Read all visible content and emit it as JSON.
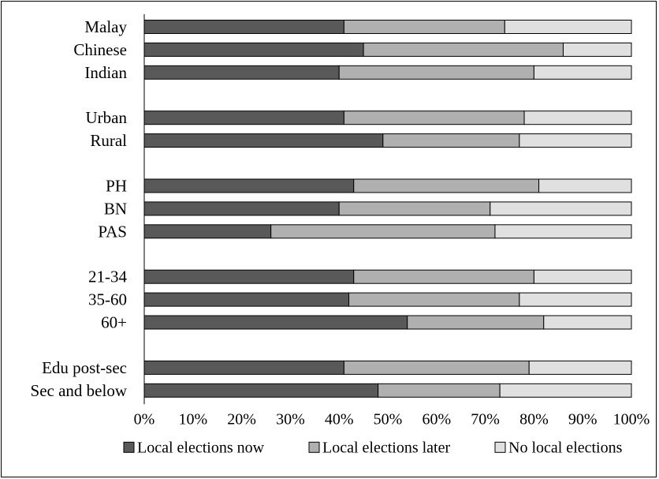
{
  "chart_data": {
    "type": "bar",
    "stacked": true,
    "orientation": "horizontal",
    "categories": [
      "Malay",
      "Chinese",
      "Indian",
      "Urban",
      "Rural",
      "PH",
      "BN",
      "PAS",
      "21-34",
      "35-60",
      "60+",
      "Edu post-sec",
      "Sec and below"
    ],
    "groups": [
      3,
      2,
      3,
      3,
      2
    ],
    "series": [
      {
        "name": "Local elections now",
        "color": "#595959",
        "values": [
          41,
          45,
          40,
          41,
          49,
          43,
          40,
          26,
          43,
          42,
          54,
          41,
          48
        ]
      },
      {
        "name": "Local elections later",
        "color": "#b0b0b0",
        "values": [
          33,
          41,
          40,
          37,
          28,
          38,
          31,
          46,
          37,
          35,
          28,
          38,
          25
        ]
      },
      {
        "name": "No local elections",
        "color": "#e0e0e0",
        "values": [
          26,
          14,
          20,
          22,
          23,
          19,
          29,
          28,
          20,
          23,
          18,
          21,
          27
        ]
      }
    ],
    "xlim": [
      0,
      100
    ],
    "xticks": [
      "0%",
      "10%",
      "20%",
      "30%",
      "40%",
      "50%",
      "60%",
      "70%",
      "80%",
      "90%",
      "100%"
    ],
    "legend_position": "bottom",
    "grid": false
  }
}
